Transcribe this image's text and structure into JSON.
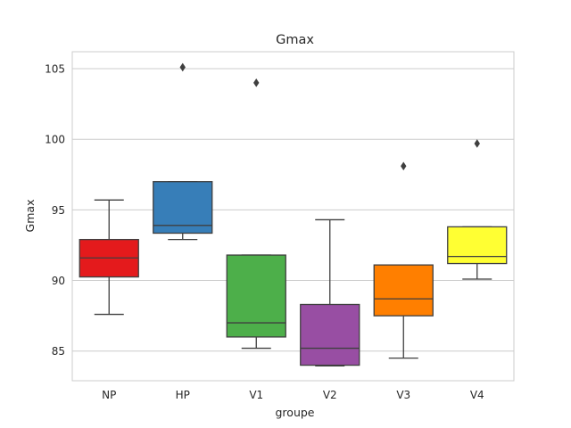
{
  "chart_data": {
    "type": "box",
    "title": "Gmax",
    "xlabel": "groupe",
    "ylabel": "Gmax",
    "ylim": [
      82.9,
      106.2
    ],
    "yticks": [
      85,
      90,
      95,
      100,
      105
    ],
    "grid": true,
    "categories": [
      "NP",
      "HP",
      "V1",
      "V2",
      "V3",
      "V4"
    ],
    "boxes": [
      {
        "name": "NP",
        "color": "#e41a1c",
        "whisker_low": 87.6,
        "q1": 90.25,
        "median": 91.6,
        "q3": 92.9,
        "whisker_high": 95.7,
        "outliers": []
      },
      {
        "name": "HP",
        "color": "#377eb8",
        "whisker_low": 92.9,
        "q1": 93.35,
        "median": 93.9,
        "q3": 97.0,
        "whisker_high": 97.0,
        "outliers": [
          105.1
        ]
      },
      {
        "name": "V1",
        "color": "#4daf4a",
        "whisker_low": 85.2,
        "q1": 86.0,
        "median": 87.0,
        "q3": 91.8,
        "whisker_high": 91.8,
        "outliers": [
          104.0
        ]
      },
      {
        "name": "V2",
        "color": "#984ea3",
        "whisker_low": 83.95,
        "q1": 84.0,
        "median": 85.2,
        "q3": 88.3,
        "whisker_high": 94.3,
        "outliers": []
      },
      {
        "name": "V3",
        "color": "#ff7f00",
        "whisker_low": 84.5,
        "q1": 87.5,
        "median": 88.7,
        "q3": 91.1,
        "whisker_high": 91.1,
        "outliers": [
          98.1
        ]
      },
      {
        "name": "V4",
        "color": "#ffff33",
        "whisker_low": 90.1,
        "q1": 91.2,
        "median": 91.7,
        "q3": 93.8,
        "whisker_high": 93.8,
        "outliers": [
          99.7
        ]
      }
    ]
  }
}
